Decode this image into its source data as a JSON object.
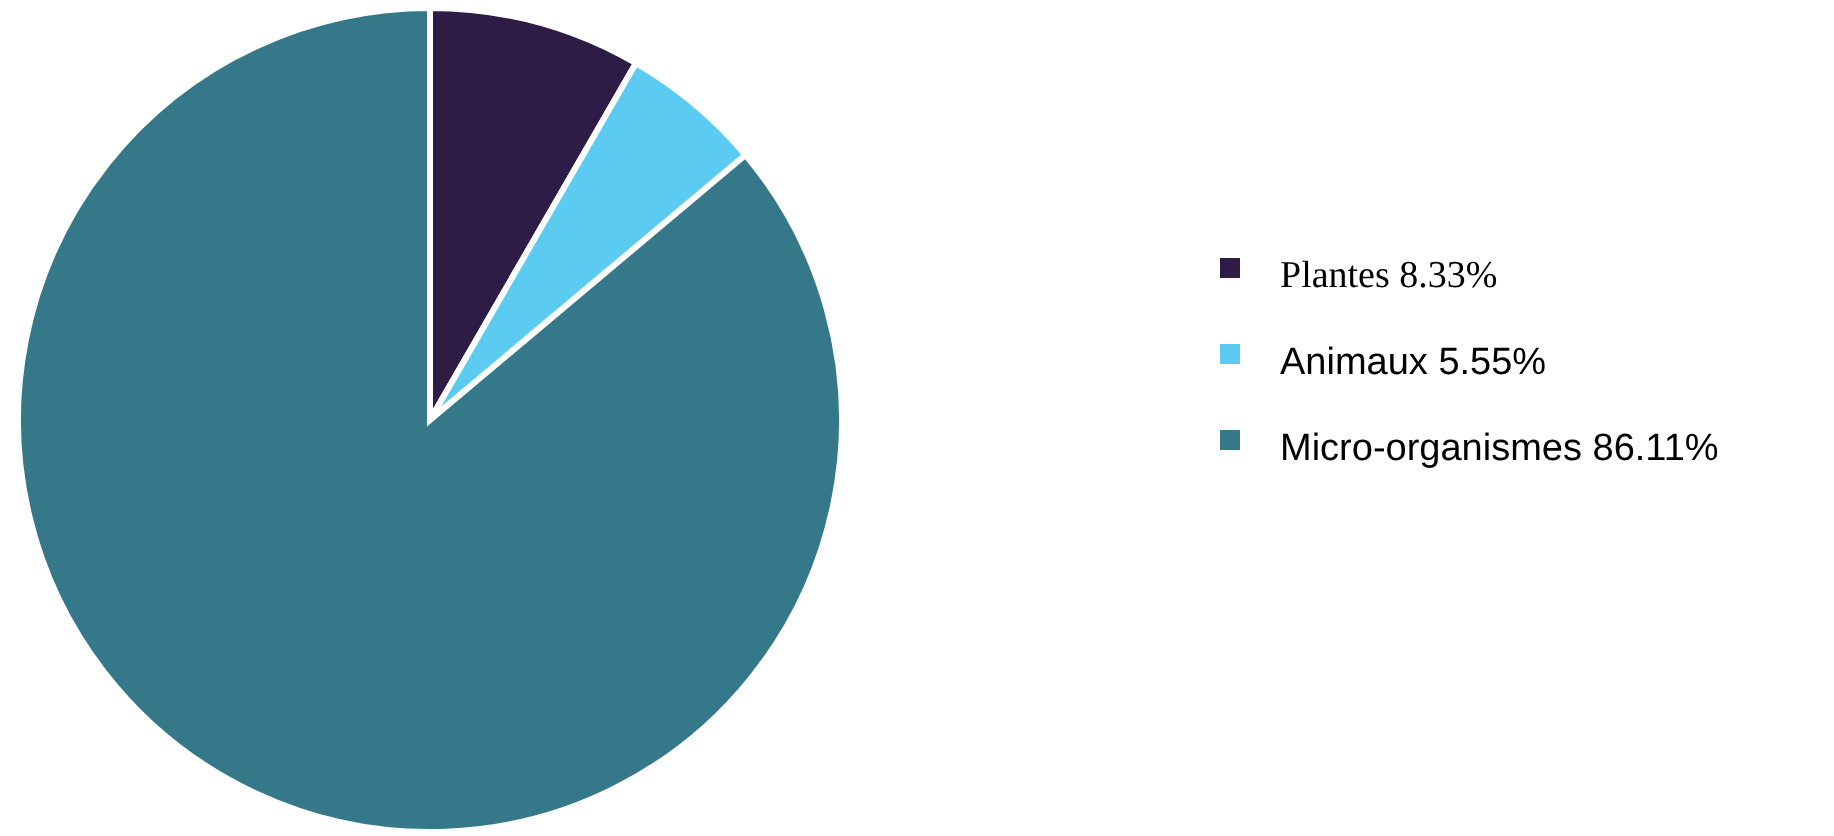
{
  "chart_data": {
    "type": "pie",
    "categories": [
      "Plantes",
      "Animaux",
      "Micro-organismes"
    ],
    "values": [
      8.33,
      5.55,
      86.11
    ],
    "value_labels": [
      "8.33%",
      "5.55%",
      "86.11%"
    ],
    "colors": [
      "#2e1b46",
      "#5ccbf2",
      "#35788a"
    ],
    "legend": "right"
  }
}
